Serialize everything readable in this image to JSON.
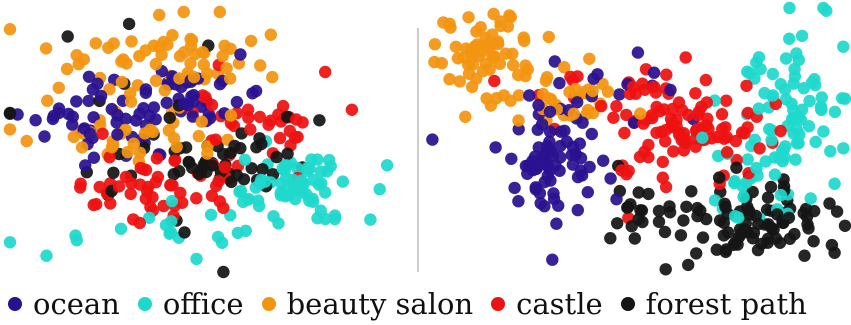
{
  "chart_data": [
    {
      "type": "scatter",
      "title": "",
      "xlabel": "",
      "ylabel": "",
      "grid": false,
      "legend": "bottom",
      "series": [
        {
          "name": "ocean",
          "color": "#2a1190",
          "clusters": [
            {
              "cx": 100,
              "cy": 125,
              "sx": 40,
              "sy": 20,
              "n": 45
            },
            {
              "cx": 190,
              "cy": 90,
              "sx": 25,
              "sy": 16,
              "n": 35
            }
          ]
        },
        {
          "name": "office",
          "color": "#1fd8cc",
          "clusters": [
            {
              "cx": 295,
              "cy": 185,
              "sx": 32,
              "sy": 18,
              "n": 60
            },
            {
              "cx": 200,
              "cy": 225,
              "sx": 60,
              "sy": 15,
              "n": 25
            }
          ]
        },
        {
          "name": "beauty salon",
          "color": "#f29410",
          "clusters": [
            {
              "cx": 175,
              "cy": 60,
              "sx": 55,
              "sy": 20,
              "n": 60
            },
            {
              "cx": 100,
              "cy": 130,
              "sx": 55,
              "sy": 25,
              "n": 40
            }
          ]
        },
        {
          "name": "castle",
          "color": "#ee1111",
          "clusters": [
            {
              "cx": 150,
              "cy": 185,
              "sx": 45,
              "sy": 18,
              "n": 50
            },
            {
              "cx": 245,
              "cy": 125,
              "sx": 45,
              "sy": 20,
              "n": 35
            }
          ]
        },
        {
          "name": "forest path",
          "color": "#151515",
          "clusters": [
            {
              "cx": 215,
              "cy": 160,
              "sx": 45,
              "sy": 12,
              "n": 40
            },
            {
              "cx": 170,
              "cy": 150,
              "sx": 90,
              "sy": 60,
              "n": 22
            }
          ]
        }
      ]
    },
    {
      "type": "scatter",
      "title": "",
      "xlabel": "",
      "ylabel": "",
      "grid": false,
      "legend": "bottom",
      "series": [
        {
          "name": "ocean",
          "color": "#2a1190",
          "clusters": [
            {
              "cx": 545,
              "cy": 165,
              "sx": 28,
              "sy": 30,
              "n": 75
            },
            {
              "cx": 610,
              "cy": 80,
              "sx": 50,
              "sy": 25,
              "n": 15
            }
          ]
        },
        {
          "name": "office",
          "color": "#1fd8cc",
          "clusters": [
            {
              "cx": 790,
              "cy": 110,
              "sx": 25,
              "sy": 40,
              "n": 70
            },
            {
              "cx": 760,
              "cy": 185,
              "sx": 40,
              "sy": 25,
              "n": 30
            }
          ]
        },
        {
          "name": "beauty salon",
          "color": "#f29410",
          "clusters": [
            {
              "cx": 480,
              "cy": 50,
              "sx": 25,
              "sy": 18,
              "n": 55
            },
            {
              "cx": 555,
              "cy": 95,
              "sx": 40,
              "sy": 18,
              "n": 40
            }
          ]
        },
        {
          "name": "castle",
          "color": "#ee1111",
          "clusters": [
            {
              "cx": 690,
              "cy": 130,
              "sx": 40,
              "sy": 25,
              "n": 85
            },
            {
              "cx": 620,
              "cy": 100,
              "sx": 40,
              "sy": 25,
              "n": 25
            }
          ]
        },
        {
          "name": "forest path",
          "color": "#151515",
          "clusters": [
            {
              "cx": 760,
              "cy": 220,
              "sx": 45,
              "sy": 20,
              "n": 85
            },
            {
              "cx": 650,
              "cy": 210,
              "sx": 25,
              "sy": 15,
              "n": 20
            }
          ]
        }
      ]
    }
  ]
}
